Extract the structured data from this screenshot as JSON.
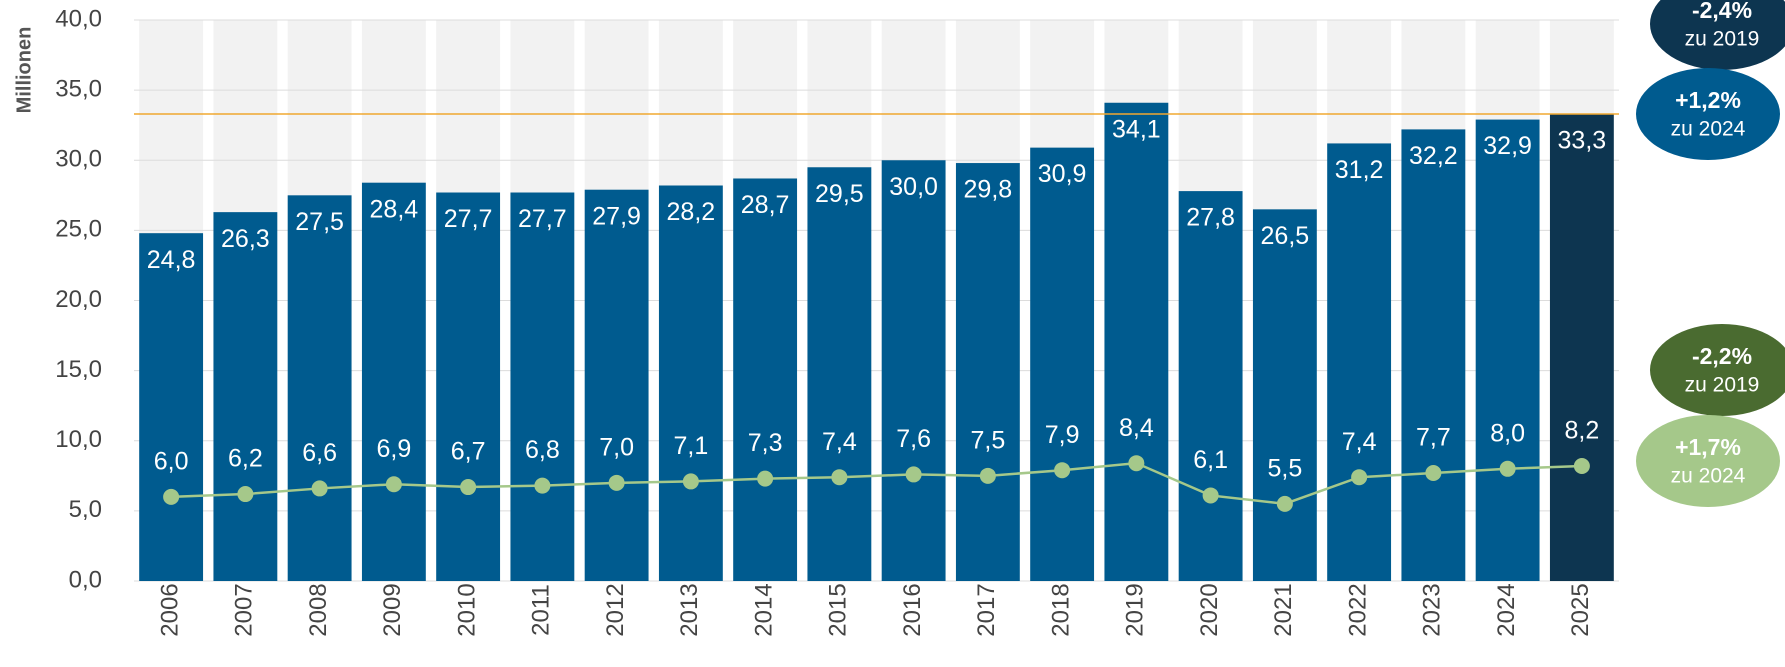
{
  "chart_data": {
    "type": "bar",
    "y_label": "Millionen",
    "categories": [
      "2006",
      "2007",
      "2008",
      "2009",
      "2010",
      "2011",
      "2012",
      "2013",
      "2014",
      "2015",
      "2016",
      "2017",
      "2018",
      "2019",
      "2020",
      "2021",
      "2022",
      "2023",
      "2024",
      "2025"
    ],
    "series": [
      {
        "type": "bar",
        "colors": [
          "#005b8f",
          "#005b8f",
          "#005b8f",
          "#005b8f",
          "#005b8f",
          "#005b8f",
          "#005b8f",
          "#005b8f",
          "#005b8f",
          "#005b8f",
          "#005b8f",
          "#005b8f",
          "#005b8f",
          "#005b8f",
          "#005b8f",
          "#005b8f",
          "#005b8f",
          "#005b8f",
          "#005b8f",
          "#0d3550"
        ],
        "values": [
          24.8,
          26.3,
          27.5,
          28.4,
          27.7,
          27.7,
          27.9,
          28.2,
          28.7,
          29.5,
          30.0,
          29.8,
          30.9,
          34.1,
          27.8,
          26.5,
          31.2,
          32.2,
          32.9,
          33.3
        ],
        "value_labels": [
          "24,8",
          "26,3",
          "27,5",
          "28,4",
          "27,7",
          "27,7",
          "27,9",
          "28,2",
          "28,7",
          "29,5",
          "30,0",
          "29,8",
          "30,9",
          "34,1",
          "27,8",
          "26,5",
          "31,2",
          "32,2",
          "32,9",
          "33,3"
        ]
      },
      {
        "type": "line",
        "color": "#a5c88a",
        "values": [
          6.0,
          6.2,
          6.6,
          6.9,
          6.7,
          6.8,
          7.0,
          7.1,
          7.3,
          7.4,
          7.6,
          7.5,
          7.9,
          8.4,
          6.1,
          5.5,
          7.4,
          7.7,
          8.0,
          8.2
        ],
        "value_labels": [
          "6,0",
          "6,2",
          "6,6",
          "6,9",
          "6,7",
          "6,8",
          "7,0",
          "7,1",
          "7,3",
          "7,4",
          "7,6",
          "7,5",
          "7,9",
          "8,4",
          "6,1",
          "5,5",
          "7,4",
          "7,7",
          "8,0",
          "8,2"
        ]
      }
    ],
    "reference_line": {
      "value": 33.3,
      "color": "#f0a830"
    },
    "ylim": [
      0,
      40
    ],
    "yticks": [
      {
        "value": 0,
        "label": "0,0"
      },
      {
        "value": 5,
        "label": "5,0"
      },
      {
        "value": 10,
        "label": "10,0"
      },
      {
        "value": 15,
        "label": "15,0"
      },
      {
        "value": 20,
        "label": "20,0"
      },
      {
        "value": 25,
        "label": "25,0"
      },
      {
        "value": 30,
        "label": "30,0"
      },
      {
        "value": 35,
        "label": "35,0"
      },
      {
        "value": 40,
        "label": "40,0"
      }
    ],
    "grid": true,
    "annotations": [
      {
        "text": "-2,4%",
        "subtext": "zu 2019",
        "color": "#0d3550",
        "text_color": "#ffffff"
      },
      {
        "text": "+1,2%",
        "subtext": "zu 2024",
        "color": "#005b8f",
        "text_color": "#ffffff"
      },
      {
        "text": "-2,2%",
        "subtext": "zu 2019",
        "color": "#4a6b30",
        "text_color": "#ffffff"
      },
      {
        "text": "+1,7%",
        "subtext": "zu 2024",
        "color": "#a5c88a",
        "text_color": "#ffffff"
      }
    ]
  }
}
